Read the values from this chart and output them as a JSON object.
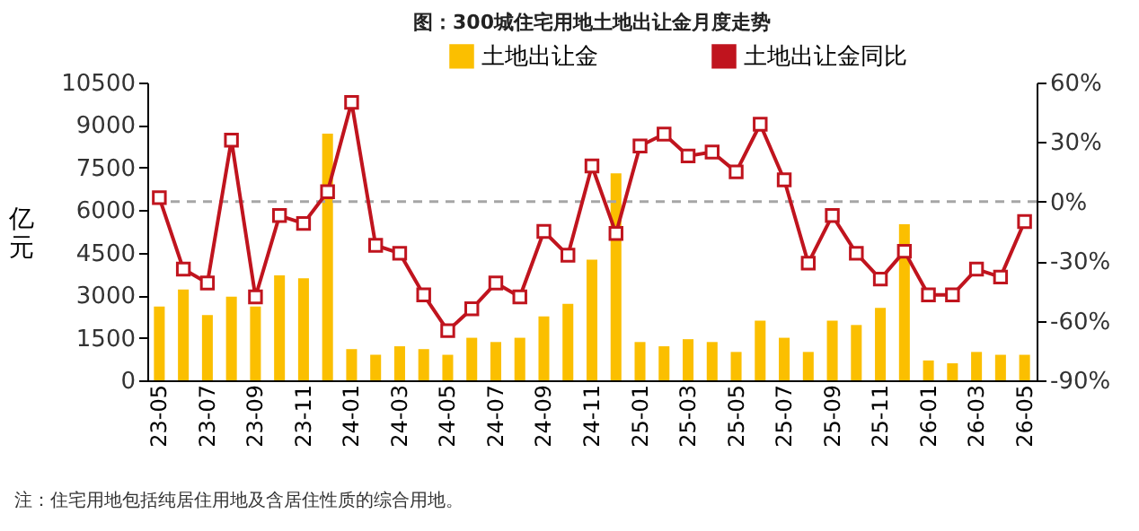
{
  "chart_data": {
    "type": "bar",
    "title": "图：300城住宅用地土地出让金月度走势",
    "ylabel": "亿元",
    "categories": [
      "23-05",
      null,
      "23-07",
      null,
      "23-09",
      null,
      "23-11",
      null,
      "24-01",
      null,
      "24-03",
      null,
      "24-05",
      null,
      "24-07",
      null,
      "24-09",
      null,
      "24-11",
      null,
      "25-01",
      null,
      "25-03",
      null,
      "25-05",
      null,
      "25-07",
      null,
      "25-09",
      null,
      "25-11",
      null,
      "26-01",
      null,
      "26-03",
      null,
      "26-05"
    ],
    "series": [
      {
        "name": "土地出让金",
        "color": "#fbbf00",
        "values": [
          2600,
          3200,
          2300,
          2950,
          2600,
          3700,
          3600,
          8700,
          1100,
          900,
          1200,
          1100,
          900,
          1500,
          1350,
          1500,
          2250,
          2700,
          4250,
          7300,
          1350,
          1200,
          1450,
          1350,
          1000,
          2100,
          1500,
          1000,
          2100,
          1950,
          2550,
          5500,
          700,
          600,
          1000,
          900,
          900
        ]
      },
      {
        "name": "土地出让金同比",
        "type": "line",
        "axis": "y2",
        "color": "#c0141e",
        "marker": "square",
        "values": [
          2,
          -34,
          -41,
          31,
          -48,
          -7,
          -11,
          5,
          50,
          -22,
          -26,
          -47,
          -65,
          -54,
          -41,
          -48,
          -15,
          -27,
          18,
          -16,
          28,
          34,
          23,
          25,
          15,
          39,
          11,
          -31,
          -7,
          -26,
          -39,
          -25,
          -47,
          -47,
          -34,
          -38,
          -10
        ]
      }
    ],
    "ylim": [
      0,
      10500
    ],
    "yticks": [
      0,
      1500,
      3000,
      4500,
      6000,
      7500,
      9000,
      10500
    ],
    "y2lim": [
      -90,
      60
    ],
    "y2ticks": [
      {
        "value": -90,
        "label": "-90%"
      },
      {
        "value": -60,
        "label": "-60%"
      },
      {
        "value": -30,
        "label": "-30%"
      },
      {
        "value": 0,
        "label": "0%"
      },
      {
        "value": 30,
        "label": "30%"
      },
      {
        "value": 60,
        "label": "60%"
      }
    ],
    "ref_lines": [
      {
        "axis": "y2",
        "value": 0,
        "color": "#a6a6a6",
        "line_style": "dashed"
      }
    ],
    "legend": "top",
    "grid": false,
    "annotations": [
      "注：住宅用地包括纯居住用地及含居住性质的综合用地。"
    ]
  }
}
